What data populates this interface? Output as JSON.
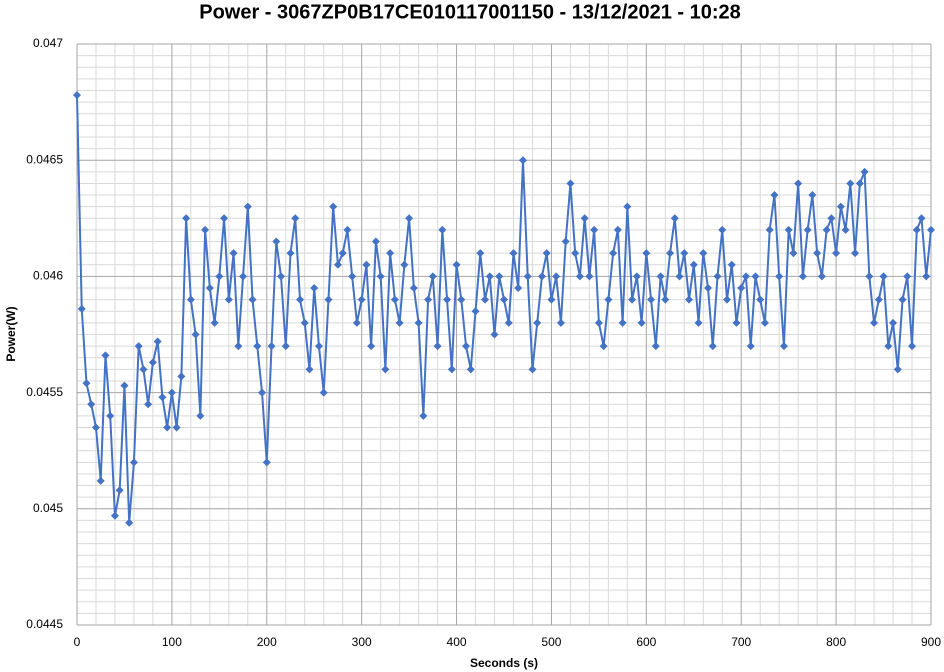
{
  "chart_data": {
    "type": "line",
    "title": "Power - 3067ZP0B17CE010117001150 - 13/12/2021 - 10:28",
    "x_label": "Seconds (s)",
    "y_label": "Power(W)",
    "xlim": [
      0,
      900
    ],
    "xticks": [
      0,
      100,
      200,
      300,
      400,
      500,
      600,
      700,
      800,
      900
    ],
    "ylim": [
      0.0445,
      0.047
    ],
    "yticks": [
      0.0445,
      0.045,
      0.0455,
      0.046,
      0.0465,
      0.047
    ],
    "grid": true,
    "minor_grid": {
      "x": 5,
      "y": 10
    },
    "series": [
      {
        "color": "#4472c4",
        "marker": "diamond",
        "x": [
          0,
          5,
          10,
          15,
          20,
          25,
          30,
          35,
          40,
          45,
          50,
          55,
          60,
          65,
          70,
          75,
          80,
          85,
          90,
          95,
          100,
          105,
          110,
          115,
          120,
          125,
          130,
          135,
          140,
          145,
          150,
          155,
          160,
          165,
          170,
          175,
          180,
          185,
          190,
          195,
          200,
          205,
          210,
          215,
          220,
          225,
          230,
          235,
          240,
          245,
          250,
          255,
          260,
          265,
          270,
          275,
          280,
          285,
          290,
          295,
          300,
          305,
          310,
          315,
          320,
          325,
          330,
          335,
          340,
          345,
          350,
          355,
          360,
          365,
          370,
          375,
          380,
          385,
          390,
          395,
          400,
          405,
          410,
          415,
          420,
          425,
          430,
          435,
          440,
          445,
          450,
          455,
          460,
          465,
          470,
          475,
          480,
          485,
          490,
          495,
          500,
          505,
          510,
          515,
          520,
          525,
          530,
          535,
          540,
          545,
          550,
          555,
          560,
          565,
          570,
          575,
          580,
          585,
          590,
          595,
          600,
          605,
          610,
          615,
          620,
          625,
          630,
          635,
          640,
          645,
          650,
          655,
          660,
          665,
          670,
          675,
          680,
          685,
          690,
          695,
          700,
          705,
          710,
          715,
          720,
          725,
          730,
          735,
          740,
          745,
          750,
          755,
          760,
          765,
          770,
          775,
          780,
          785,
          790,
          795,
          800,
          805,
          810,
          815,
          820,
          825,
          830,
          835,
          840,
          845,
          850,
          855,
          860,
          865,
          870,
          875,
          880,
          885,
          890,
          895,
          900
        ],
        "values": [
          0.04678,
          0.04586,
          0.04554,
          0.04545,
          0.04535,
          0.04512,
          0.04566,
          0.0454,
          0.04497,
          0.04508,
          0.04553,
          0.04494,
          0.0452,
          0.0457,
          0.0456,
          0.04545,
          0.04563,
          0.04572,
          0.04548,
          0.04535,
          0.0455,
          0.04535,
          0.04557,
          0.04625,
          0.0459,
          0.04575,
          0.0454,
          0.0462,
          0.04595,
          0.0458,
          0.046,
          0.04625,
          0.0459,
          0.0461,
          0.0457,
          0.046,
          0.0463,
          0.0459,
          0.0457,
          0.0455,
          0.0452,
          0.0457,
          0.04615,
          0.046,
          0.0457,
          0.0461,
          0.04625,
          0.0459,
          0.0458,
          0.0456,
          0.04595,
          0.0457,
          0.0455,
          0.0459,
          0.0463,
          0.04605,
          0.0461,
          0.0462,
          0.046,
          0.0458,
          0.0459,
          0.04605,
          0.0457,
          0.04615,
          0.046,
          0.0456,
          0.0461,
          0.0459,
          0.0458,
          0.04605,
          0.04625,
          0.04595,
          0.0458,
          0.0454,
          0.0459,
          0.046,
          0.0457,
          0.0462,
          0.0459,
          0.0456,
          0.04605,
          0.0459,
          0.0457,
          0.0456,
          0.04585,
          0.0461,
          0.0459,
          0.046,
          0.04575,
          0.046,
          0.0459,
          0.0458,
          0.0461,
          0.04595,
          0.0465,
          0.046,
          0.0456,
          0.0458,
          0.046,
          0.0461,
          0.0459,
          0.046,
          0.0458,
          0.04615,
          0.0464,
          0.0461,
          0.046,
          0.04625,
          0.046,
          0.0462,
          0.0458,
          0.0457,
          0.0459,
          0.0461,
          0.0462,
          0.0458,
          0.0463,
          0.0459,
          0.046,
          0.0458,
          0.0461,
          0.0459,
          0.0457,
          0.046,
          0.0459,
          0.0461,
          0.04625,
          0.046,
          0.0461,
          0.0459,
          0.04605,
          0.0458,
          0.0461,
          0.04595,
          0.0457,
          0.046,
          0.0462,
          0.0459,
          0.04605,
          0.0458,
          0.04595,
          0.046,
          0.0457,
          0.046,
          0.0459,
          0.0458,
          0.0462,
          0.04635,
          0.046,
          0.0457,
          0.0462,
          0.0461,
          0.0464,
          0.046,
          0.0462,
          0.04635,
          0.0461,
          0.046,
          0.0462,
          0.04625,
          0.0461,
          0.0463,
          0.0462,
          0.0464,
          0.0461,
          0.0464,
          0.04645,
          0.046,
          0.0458,
          0.0459,
          0.046,
          0.0457,
          0.0458,
          0.0456,
          0.0459,
          0.046,
          0.0457,
          0.0462,
          0.04625,
          0.046,
          0.0462
        ]
      }
    ]
  }
}
